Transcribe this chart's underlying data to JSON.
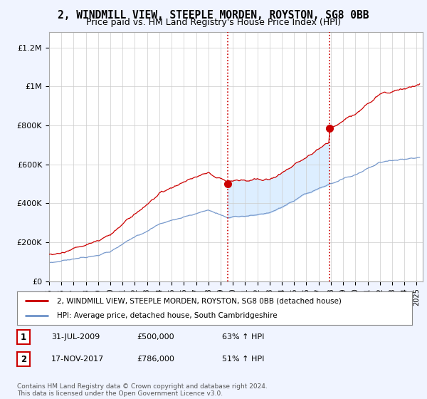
{
  "title": "2, WINDMILL VIEW, STEEPLE MORDEN, ROYSTON, SG8 0BB",
  "subtitle": "Price paid vs. HM Land Registry's House Price Index (HPI)",
  "title_fontsize": 10.5,
  "subtitle_fontsize": 9,
  "ylabel_ticks": [
    "£0",
    "£200K",
    "£400K",
    "£600K",
    "£800K",
    "£1M",
    "£1.2M"
  ],
  "ytick_values": [
    0,
    200000,
    400000,
    600000,
    800000,
    1000000,
    1200000
  ],
  "ylim": [
    0,
    1280000
  ],
  "xlim_start": 1995.0,
  "xlim_end": 2025.5,
  "background_color": "#f0f4ff",
  "plot_bg_color": "#ffffff",
  "red_line_color": "#cc0000",
  "blue_line_color": "#7799cc",
  "fill_color": "#ddeeff",
  "marker1_year": 2009.58,
  "marker2_year": 2017.88,
  "marker1_price": 500000,
  "marker2_price": 786000,
  "vline_color": "#cc0000",
  "legend_line1": "2, WINDMILL VIEW, STEEPLE MORDEN, ROYSTON, SG8 0BB (detached house)",
  "legend_line2": "HPI: Average price, detached house, South Cambridgeshire",
  "table_rows": [
    [
      "1",
      "31-JUL-2009",
      "£500,000",
      "63% ↑ HPI"
    ],
    [
      "2",
      "17-NOV-2017",
      "£786,000",
      "51% ↑ HPI"
    ]
  ],
  "footnote": "Contains HM Land Registry data © Crown copyright and database right 2024.\nThis data is licensed under the Open Government Licence v3.0."
}
